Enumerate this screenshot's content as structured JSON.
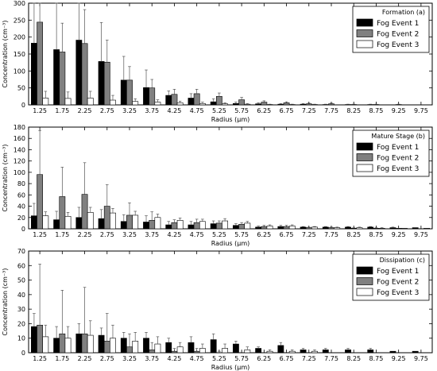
{
  "chart_data": [
    {
      "type": "bar",
      "x_unit": "µm",
      "xlabel": "Radius (µm)",
      "ylabel": "Concentration (cm⁻³)",
      "ylim": [
        0,
        300
      ],
      "yticks": [
        0,
        50,
        100,
        150,
        200,
        250,
        300
      ],
      "grid": false,
      "legend_title": "Formation (a)",
      "legend_position": "top-right",
      "categories": [
        "1.25",
        "1.75",
        "2.25",
        "2.75",
        "3.25",
        "3.75",
        "4.25",
        "4.75",
        "5.25",
        "5.75",
        "6.25",
        "6.75",
        "7.25",
        "7.75",
        "8.25",
        "8.75",
        "9.25",
        "9.75"
      ],
      "series": [
        {
          "name": "Fog Event 1",
          "color": "#000000",
          "values": [
            182,
            163,
            191,
            128,
            73,
            51,
            28,
            20,
            9,
            4,
            3,
            2,
            2,
            1,
            1,
            1,
            0,
            0
          ],
          "errors": [
            168,
            150,
            170,
            115,
            70,
            52,
            13,
            13,
            9,
            4,
            3,
            2,
            2,
            1,
            1,
            1,
            0,
            0
          ]
        },
        {
          "name": "Fog Event 2",
          "color": "#808080",
          "values": [
            244,
            156,
            181,
            126,
            73,
            50,
            31,
            33,
            25,
            15,
            8,
            6,
            3,
            3,
            1,
            1,
            1,
            0
          ],
          "errors": [
            125,
            85,
            100,
            65,
            40,
            25,
            15,
            13,
            10,
            7,
            4,
            3,
            2,
            2,
            1,
            1,
            1,
            0
          ]
        },
        {
          "name": "Fog Event 3",
          "color": "#ffffff",
          "values": [
            20,
            19,
            20,
            14,
            10,
            8,
            6,
            4,
            3,
            2,
            1,
            1,
            1,
            0,
            0,
            0,
            0,
            0
          ],
          "errors": [
            20,
            19,
            20,
            14,
            8,
            7,
            5,
            4,
            3,
            2,
            1,
            1,
            1,
            0,
            0,
            0,
            0,
            0
          ]
        }
      ]
    },
    {
      "type": "bar",
      "x_unit": "µm",
      "xlabel": "Radius (µm)",
      "ylabel": "Concentration (cm⁻³)",
      "ylim": [
        0,
        180
      ],
      "yticks": [
        0,
        20,
        40,
        60,
        80,
        100,
        120,
        140,
        160,
        180
      ],
      "grid": false,
      "legend_title": "Mature Stage (b)",
      "legend_position": "top-right",
      "categories": [
        "1.25",
        "1.75",
        "2.25",
        "2.75",
        "3.25",
        "3.75",
        "4.25",
        "4.75",
        "5.25",
        "5.75",
        "6.25",
        "6.75",
        "7.25",
        "7.75",
        "8.25",
        "8.75",
        "9.25",
        "9.75"
      ],
      "series": [
        {
          "name": "Fog Event 1",
          "color": "#000000",
          "values": [
            23,
            16,
            20,
            18,
            13,
            12,
            7,
            7,
            9,
            6,
            3,
            4,
            3,
            3,
            3,
            3,
            2,
            2
          ],
          "errors": [
            22,
            15,
            18,
            16,
            12,
            11,
            6,
            6,
            5,
            3,
            2,
            2,
            1,
            1,
            1,
            1,
            1,
            0
          ]
        },
        {
          "name": "Fog Event 2",
          "color": "#808080",
          "values": [
            96,
            57,
            61,
            40,
            24,
            15,
            11,
            11,
            10,
            8,
            4,
            4,
            2,
            2,
            1,
            1,
            1,
            0
          ],
          "errors": [
            78,
            52,
            56,
            38,
            22,
            15,
            5,
            6,
            4,
            3,
            2,
            2,
            1,
            1,
            1,
            1,
            0,
            0
          ]
        },
        {
          "name": "Fog Event 3",
          "color": "#ffffff",
          "values": [
            23,
            22,
            29,
            28,
            24,
            20,
            15,
            13,
            14,
            10,
            5,
            5,
            3,
            2,
            2,
            1,
            1,
            1
          ],
          "errors": [
            7,
            7,
            9,
            8,
            7,
            6,
            4,
            4,
            4,
            3,
            2,
            2,
            1,
            1,
            1,
            1,
            0,
            0
          ]
        }
      ]
    },
    {
      "type": "bar",
      "x_unit": "µm",
      "xlabel": "Radius (µm)",
      "ylabel": "Concentration (cm⁻³)",
      "ylim": [
        0,
        70
      ],
      "yticks": [
        0,
        10,
        20,
        30,
        40,
        50,
        60,
        70
      ],
      "grid": false,
      "legend_title": "Dissipation (c)",
      "legend_position": "top-right",
      "categories": [
        "1.25",
        "1.75",
        "2.25",
        "2.75",
        "3.25",
        "3.75",
        "4.25",
        "4.75",
        "5.25",
        "5.75",
        "6.25",
        "6.75",
        "7.25",
        "7.75",
        "8.25",
        "8.75",
        "9.25",
        "9.75"
      ],
      "series": [
        {
          "name": "Fog Event 1",
          "color": "#000000",
          "values": [
            18,
            10,
            13,
            12,
            10,
            10,
            7,
            7,
            9,
            6,
            3,
            5,
            2,
            2,
            2,
            2,
            1,
            1
          ],
          "errors": [
            9,
            8,
            7,
            5,
            4,
            4,
            3,
            4,
            4,
            2,
            1,
            2,
            1,
            1,
            1,
            1,
            0,
            0
          ]
        },
        {
          "name": "Fog Event 2",
          "color": "#808080",
          "values": [
            19,
            13,
            13,
            8,
            4,
            2,
            1,
            1,
            0,
            0,
            0,
            0,
            0,
            0,
            0,
            0,
            0,
            0
          ],
          "errors": [
            42,
            30,
            32,
            19,
            9,
            5,
            2,
            2,
            1,
            0,
            0,
            0,
            0,
            0,
            0,
            0,
            0,
            0
          ]
        },
        {
          "name": "Fog Event 3",
          "color": "#ffffff",
          "values": [
            11,
            10,
            12,
            10,
            8,
            6,
            4,
            3,
            3,
            2,
            1,
            1,
            1,
            0,
            0,
            0,
            0,
            0
          ],
          "errors": [
            8,
            8,
            10,
            9,
            6,
            5,
            3,
            3,
            3,
            2,
            1,
            1,
            1,
            0,
            0,
            0,
            0,
            0
          ]
        }
      ]
    }
  ]
}
